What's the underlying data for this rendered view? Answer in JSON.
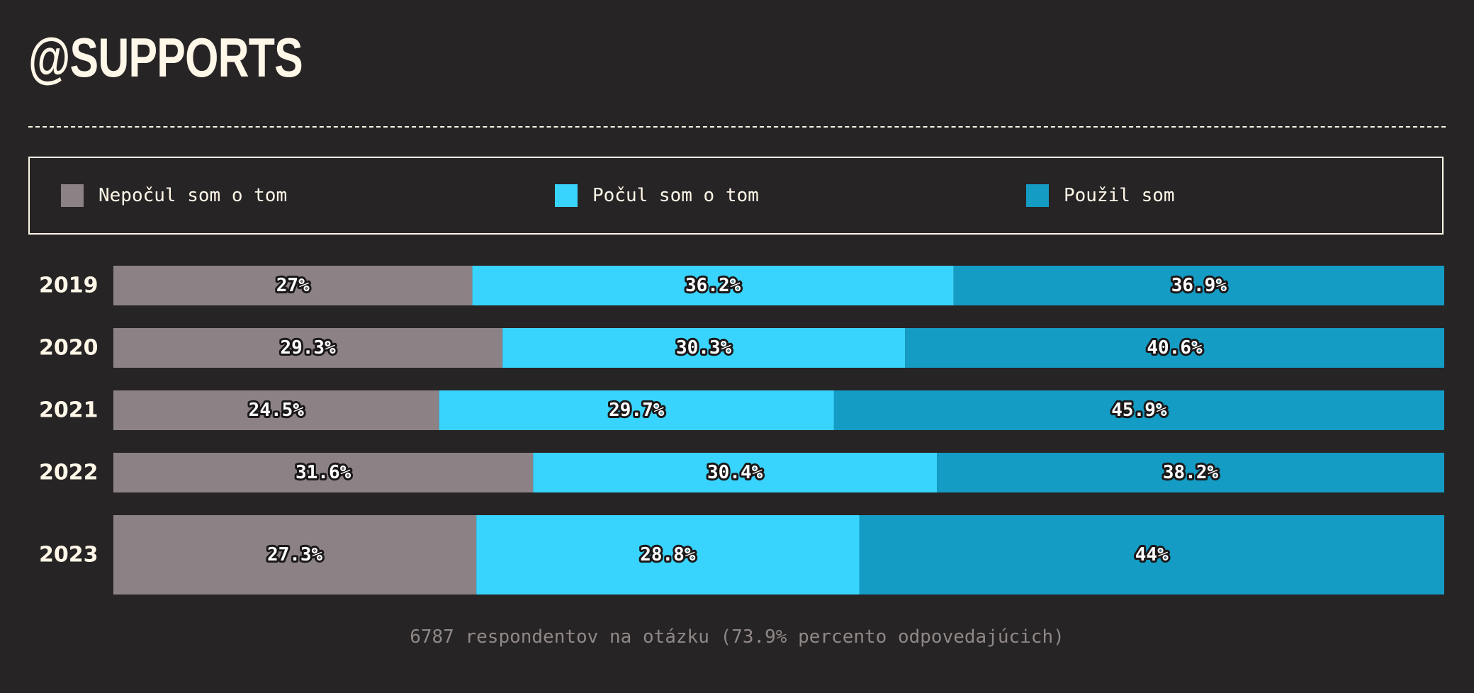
{
  "title": "@SUPPORTS",
  "footnote": "6787 respondentov na otázku (73.9% percento odpovedajúcich)",
  "legend": [
    {
      "label": "Nepočul som o tom",
      "color": "#8c8285"
    },
    {
      "label": "Počul som o tom",
      "color": "#38d4fd"
    },
    {
      "label": "Použil som",
      "color": "#149cc4"
    }
  ],
  "chart_data": {
    "type": "bar",
    "orientation": "horizontal",
    "stacked": true,
    "categories": [
      "2019",
      "2020",
      "2021",
      "2022",
      "2023"
    ],
    "series": [
      {
        "name": "Nepočul som o tom",
        "color": "#8c8285",
        "values": [
          27,
          29.3,
          24.5,
          31.6,
          27.3
        ]
      },
      {
        "name": "Počul som o tom",
        "color": "#38d4fd",
        "values": [
          36.2,
          30.3,
          29.7,
          30.4,
          28.8
        ]
      },
      {
        "name": "Použil som",
        "color": "#149cc4",
        "values": [
          36.9,
          40.6,
          45.9,
          38.2,
          44
        ]
      }
    ],
    "value_labels": [
      [
        "27%",
        "36.2%",
        "36.9%"
      ],
      [
        "29.3%",
        "30.3%",
        "40.6%"
      ],
      [
        "24.5%",
        "29.7%",
        "45.9%"
      ],
      [
        "31.6%",
        "30.4%",
        "38.2%"
      ],
      [
        "27.3%",
        "28.8%",
        "44%"
      ]
    ],
    "legend_position": "top",
    "grid": false
  }
}
